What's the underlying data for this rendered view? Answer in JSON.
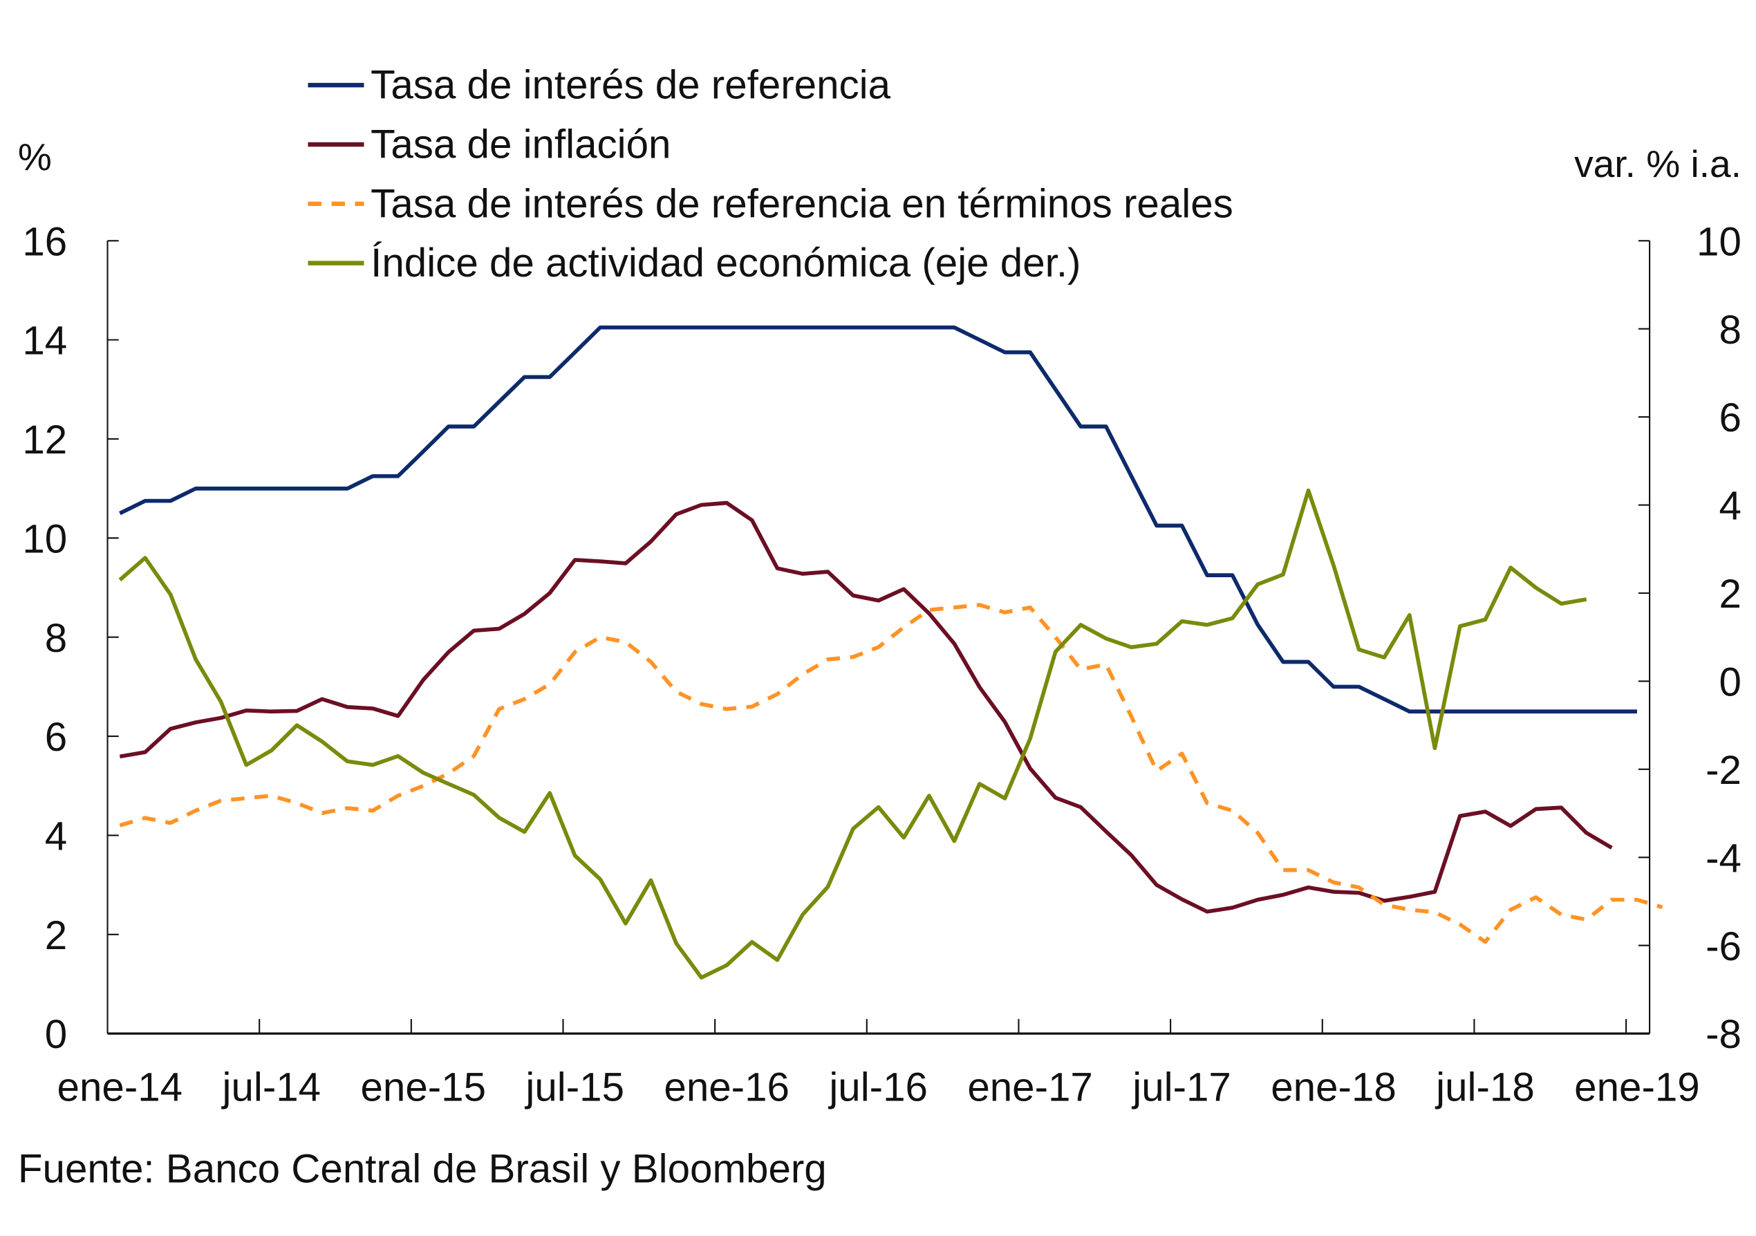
{
  "chart_data": {
    "type": "line",
    "left_axis": {
      "label": "%",
      "ylim": [
        0,
        16
      ],
      "ticks": [
        0,
        2,
        4,
        6,
        8,
        10,
        12,
        14,
        16
      ]
    },
    "right_axis": {
      "label": "var. % i.a.",
      "ylim": [
        -8,
        10
      ],
      "ticks": [
        -8,
        -6,
        -4,
        -2,
        0,
        2,
        4,
        6,
        8,
        10
      ]
    },
    "x_tick_labels": [
      "ene-14",
      "jul-14",
      "ene-15",
      "jul-15",
      "ene-16",
      "jul-16",
      "ene-17",
      "jul-17",
      "ene-18",
      "jul-18",
      "ene-19"
    ],
    "x_start": "ene-14",
    "frequency": "monthly",
    "grid": false,
    "legend_position": "top",
    "series": [
      {
        "name": "Tasa de interés de referencia",
        "axis": "left",
        "color": "#0d2a6b",
        "dash": false,
        "values": [
          10.5,
          10.75,
          10.75,
          11,
          11,
          11,
          11,
          11,
          11,
          11,
          11.25,
          11.25,
          11.75,
          12.25,
          12.25,
          12.75,
          13.25,
          13.25,
          13.75,
          14.25,
          14.25,
          14.25,
          14.25,
          14.25,
          14.25,
          14.25,
          14.25,
          14.25,
          14.25,
          14.25,
          14.25,
          14.25,
          14.25,
          14.25,
          14,
          13.75,
          13.75,
          13,
          12.25,
          12.25,
          11.25,
          10.25,
          10.25,
          9.25,
          9.25,
          8.25,
          7.5,
          7.5,
          7,
          7,
          6.75,
          6.5,
          6.5,
          6.5,
          6.5,
          6.5,
          6.5,
          6.5,
          6.5,
          6.5,
          6.5
        ]
      },
      {
        "name": "Tasa de inflación",
        "axis": "left",
        "color": "#6b0f24",
        "dash": false,
        "values": [
          5.59,
          5.68,
          6.15,
          6.28,
          6.37,
          6.52,
          6.5,
          6.51,
          6.75,
          6.59,
          6.56,
          6.41,
          7.14,
          7.7,
          8.13,
          8.17,
          8.47,
          8.89,
          9.56,
          9.53,
          9.49,
          9.93,
          10.48,
          10.67,
          10.71,
          10.36,
          9.39,
          9.28,
          9.32,
          8.84,
          8.74,
          8.97,
          8.48,
          7.87,
          6.99,
          6.29,
          5.35,
          4.76,
          4.57,
          4.08,
          3.6,
          3.0,
          2.71,
          2.46,
          2.54,
          2.7,
          2.8,
          2.95,
          2.86,
          2.84,
          2.68,
          2.76,
          2.86,
          4.39,
          4.48,
          4.19,
          4.53,
          4.56,
          4.05,
          3.75
        ]
      },
      {
        "name": "Tasa de interés de referencia en términos reales",
        "axis": "left",
        "color": "#ff9326",
        "dash": true,
        "values": [
          4.2,
          4.35,
          4.25,
          4.5,
          4.7,
          4.75,
          4.8,
          4.65,
          4.45,
          4.55,
          4.5,
          4.8,
          5.0,
          5.25,
          5.6,
          6.55,
          6.75,
          7.05,
          7.7,
          8.0,
          7.9,
          7.5,
          6.9,
          6.65,
          6.55,
          6.6,
          6.85,
          7.25,
          7.55,
          7.6,
          7.8,
          8.2,
          8.55,
          8.6,
          8.65,
          8.5,
          8.6,
          8.0,
          7.35,
          7.45,
          6.4,
          5.3,
          5.65,
          4.65,
          4.5,
          4.05,
          3.3,
          3.3,
          3.05,
          2.95,
          2.6,
          2.5,
          2.45,
          2.2,
          1.85,
          2.5,
          2.75,
          2.4,
          2.3,
          2.7,
          2.7,
          2.55
        ]
      },
      {
        "name": "Índice de actividad económica (eje der.)",
        "axis": "right",
        "color": "#7a8a0c",
        "dash": false,
        "values": [
          2.3,
          2.8,
          1.97,
          0.5,
          -0.47,
          -1.9,
          -1.57,
          -1.0,
          -1.37,
          -1.82,
          -1.9,
          -1.7,
          -2.08,
          -2.33,
          -2.58,
          -3.1,
          -3.42,
          -2.54,
          -3.96,
          -4.5,
          -5.5,
          -4.52,
          -5.95,
          -6.73,
          -6.45,
          -5.92,
          -6.33,
          -5.3,
          -4.67,
          -3.35,
          -2.86,
          -3.55,
          -2.6,
          -3.63,
          -2.33,
          -2.66,
          -1.3,
          0.67,
          1.28,
          0.97,
          0.77,
          0.85,
          1.36,
          1.28,
          1.43,
          2.2,
          2.42,
          4.33,
          2.63,
          0.72,
          0.54,
          1.5,
          -1.52,
          1.25,
          1.4,
          2.58,
          2.12,
          1.76,
          1.86
        ]
      }
    ]
  },
  "source": "Fuente: Banco Central de Brasil y Bloomberg"
}
